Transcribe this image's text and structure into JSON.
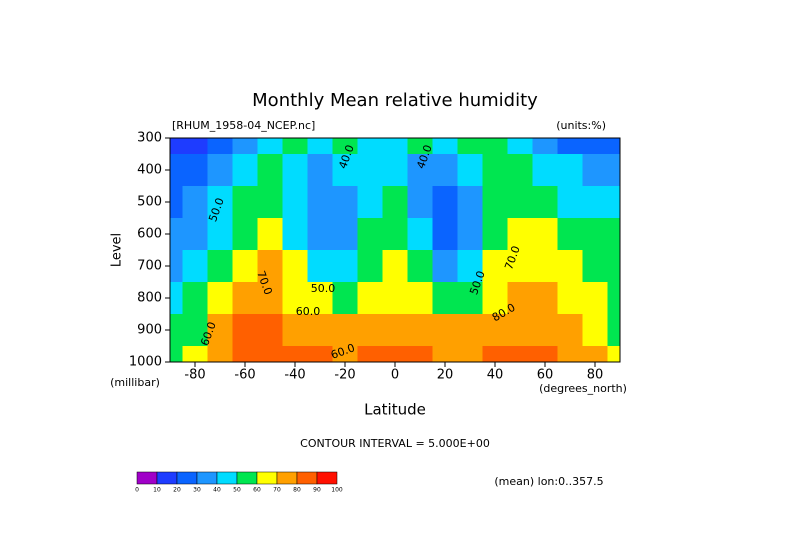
{
  "chart_data": {
    "type": "contour",
    "title": "Monthly Mean relative humidity",
    "file_label": "[RHUM_1958-04_NCEP.nc]",
    "units_label": "(units:%)",
    "ylabel": "Level",
    "yunits": "(millibar)",
    "xlabel": "Latitude",
    "xunits": "(degrees_north)",
    "footnote": "CONTOUR INTERVAL = 5.000E+00",
    "mean_label": "(mean) lon:0..357.5",
    "x": [
      -90,
      -80,
      -70,
      -60,
      -50,
      -40,
      -30,
      -20,
      -10,
      0,
      10,
      20,
      30,
      40,
      50,
      60,
      70,
      80,
      90
    ],
    "y": [
      300,
      400,
      500,
      600,
      700,
      800,
      900,
      1000
    ],
    "xlim": [
      -90,
      90
    ],
    "ylim": [
      300,
      1000
    ],
    "y_reversed": true,
    "xticks": [
      -80,
      -60,
      -40,
      -20,
      0,
      20,
      40,
      60,
      80
    ],
    "yticks": [
      300,
      400,
      500,
      600,
      700,
      800,
      900,
      1000
    ],
    "z": [
      [
        10,
        15,
        25,
        35,
        45,
        50,
        45,
        50,
        45,
        42,
        50,
        45,
        50,
        55,
        45,
        35,
        25,
        25,
        25
      ],
      [
        20,
        25,
        35,
        45,
        50,
        45,
        35,
        40,
        45,
        45,
        35,
        30,
        45,
        55,
        50,
        45,
        40,
        35,
        35
      ],
      [
        25,
        30,
        40,
        50,
        55,
        40,
        30,
        35,
        45,
        50,
        35,
        20,
        30,
        50,
        55,
        50,
        45,
        40,
        40
      ],
      [
        30,
        35,
        45,
        55,
        60,
        45,
        30,
        35,
        50,
        55,
        40,
        25,
        35,
        55,
        60,
        62,
        55,
        50,
        50
      ],
      [
        35,
        40,
        55,
        65,
        70,
        60,
        40,
        45,
        55,
        62,
        50,
        35,
        45,
        60,
        65,
        68,
        60,
        55,
        55
      ],
      [
        45,
        50,
        60,
        70,
        75,
        68,
        60,
        55,
        65,
        68,
        62,
        50,
        55,
        68,
        72,
        70,
        65,
        60,
        55
      ],
      [
        50,
        55,
        70,
        80,
        82,
        78,
        72,
        70,
        75,
        78,
        75,
        72,
        70,
        75,
        78,
        75,
        70,
        62,
        50
      ],
      [
        55,
        60,
        75,
        85,
        85,
        82,
        80,
        78,
        80,
        82,
        80,
        78,
        75,
        80,
        82,
        80,
        75,
        70,
        60
      ]
    ],
    "colorbar": {
      "levels": [
        0,
        10,
        20,
        30,
        40,
        50,
        60,
        70,
        80,
        90,
        100
      ],
      "colors": [
        "#a000c8",
        "#1e3cff",
        "#0a64ff",
        "#1e96ff",
        "#00dcff",
        "#00e650",
        "#ffff00",
        "#ffa000",
        "#ff6000",
        "#ff1000"
      ]
    },
    "contour_labels": [
      "40.0",
      "40.0",
      "50.0",
      "50.0",
      "50.0",
      "60.0",
      "60.0",
      "70.0",
      "70.0",
      "80.0",
      "60.0"
    ]
  }
}
